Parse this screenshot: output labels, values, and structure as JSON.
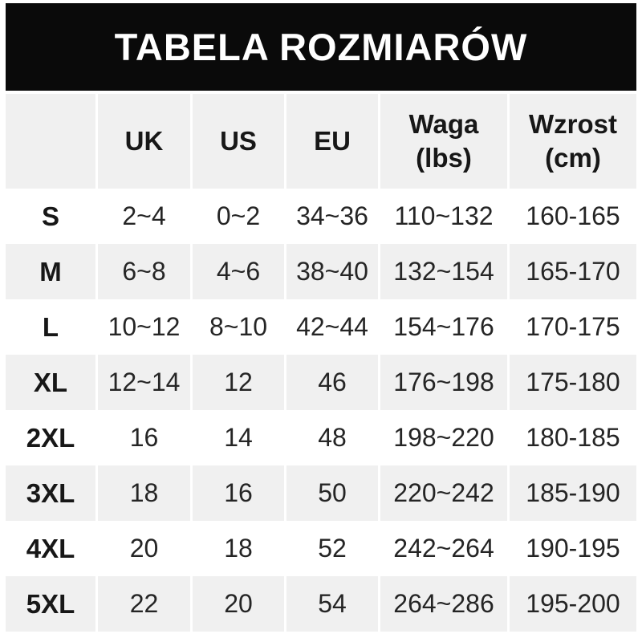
{
  "title": "TABELA ROZMIARÓW",
  "colors": {
    "title_band_bg": "#0a0a0a",
    "title_text": "#ffffff",
    "alt_row_bg": "#f0f0f0",
    "text": "#252525"
  },
  "table": {
    "headers": [
      {
        "line1": "",
        "line2": ""
      },
      {
        "line1": "UK",
        "line2": ""
      },
      {
        "line1": "US",
        "line2": ""
      },
      {
        "line1": "EU",
        "line2": ""
      },
      {
        "line1": "Waga",
        "line2": "(lbs)"
      },
      {
        "line1": "Wzrost",
        "line2": "(cm)"
      }
    ],
    "rows": [
      {
        "size": "S",
        "uk": "2~4",
        "us": "0~2",
        "eu": "34~36",
        "waga": "110~132",
        "wzrost": "160-165"
      },
      {
        "size": "M",
        "uk": "6~8",
        "us": "4~6",
        "eu": "38~40",
        "waga": "132~154",
        "wzrost": "165-170"
      },
      {
        "size": "L",
        "uk": "10~12",
        "us": "8~10",
        "eu": "42~44",
        "waga": "154~176",
        "wzrost": "170-175"
      },
      {
        "size": "XL",
        "uk": "12~14",
        "us": "12",
        "eu": "46",
        "waga": "176~198",
        "wzrost": "175-180"
      },
      {
        "size": "2XL",
        "uk": "16",
        "us": "14",
        "eu": "48",
        "waga": "198~220",
        "wzrost": "180-185"
      },
      {
        "size": "3XL",
        "uk": "18",
        "us": "16",
        "eu": "50",
        "waga": "220~242",
        "wzrost": "185-190"
      },
      {
        "size": "4XL",
        "uk": "20",
        "us": "18",
        "eu": "52",
        "waga": "242~264",
        "wzrost": "190-195"
      },
      {
        "size": "5XL",
        "uk": "22",
        "us": "20",
        "eu": "54",
        "waga": "264~286",
        "wzrost": "195-200"
      }
    ]
  },
  "chart_data": {
    "type": "table",
    "title": "TABELA ROZMIARÓW",
    "columns": [
      "",
      "UK",
      "US",
      "EU",
      "Waga (lbs)",
      "Wzrost (cm)"
    ],
    "rows": [
      [
        "S",
        "2~4",
        "0~2",
        "34~36",
        "110~132",
        "160-165"
      ],
      [
        "M",
        "6~8",
        "4~6",
        "38~40",
        "132~154",
        "165-170"
      ],
      [
        "L",
        "10~12",
        "8~10",
        "42~44",
        "154~176",
        "170-175"
      ],
      [
        "XL",
        "12~14",
        "12",
        "46",
        "176~198",
        "175-180"
      ],
      [
        "2XL",
        "16",
        "14",
        "48",
        "198~220",
        "180-185"
      ],
      [
        "3XL",
        "18",
        "16",
        "50",
        "220~242",
        "185-190"
      ],
      [
        "4XL",
        "20",
        "18",
        "52",
        "242~264",
        "190-195"
      ],
      [
        "5XL",
        "22",
        "20",
        "54",
        "264~286",
        "195-200"
      ]
    ]
  }
}
